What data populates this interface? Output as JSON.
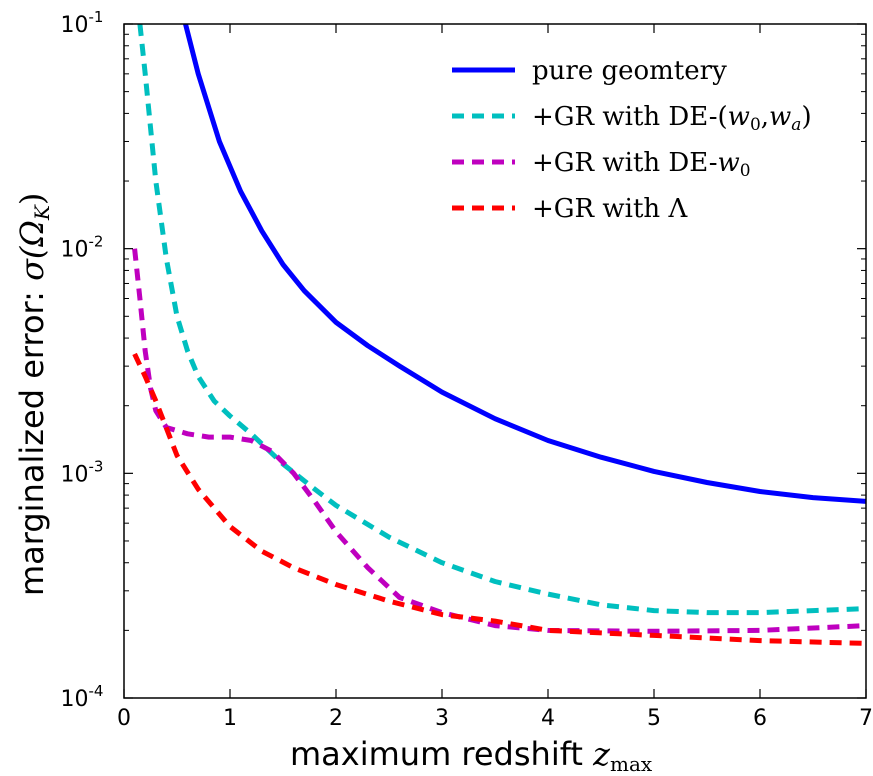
{
  "chart_data": {
    "type": "line",
    "title": "",
    "xlabel": "maximum redshift",
    "xlabel_symbol": "z",
    "xlabel_subscript": "max",
    "ylabel": "marginalized error:",
    "ylabel_symbol": "σ(Ω",
    "ylabel_subscript": "K",
    "ylabel_close": ")",
    "xlim": [
      0,
      7
    ],
    "ylim": [
      0.0001,
      0.1
    ],
    "yscale": "log",
    "grid": false,
    "legend_position": "top-right",
    "x_ticks": [
      {
        "value": 0,
        "label": "0"
      },
      {
        "value": 1,
        "label": "1"
      },
      {
        "value": 2,
        "label": "2"
      },
      {
        "value": 3,
        "label": "3"
      },
      {
        "value": 4,
        "label": "4"
      },
      {
        "value": 5,
        "label": "5"
      },
      {
        "value": 6,
        "label": "6"
      },
      {
        "value": 7,
        "label": "7"
      }
    ],
    "y_ticks": [
      {
        "value": 0.0001,
        "base": "10",
        "exp": "-4"
      },
      {
        "value": 0.001,
        "base": "10",
        "exp": "-3"
      },
      {
        "value": 0.01,
        "base": "10",
        "exp": "-2"
      },
      {
        "value": 0.1,
        "base": "10",
        "exp": "-1"
      }
    ],
    "series": [
      {
        "name": "pure geomtery",
        "color": "#0000ff",
        "dash": "solid",
        "x": [
          0.58,
          0.7,
          0.9,
          1.1,
          1.3,
          1.5,
          1.7,
          2.0,
          2.3,
          2.6,
          3.0,
          3.5,
          4.0,
          4.5,
          5.0,
          5.5,
          6.0,
          6.5,
          7.0
        ],
        "y": [
          0.1,
          0.06,
          0.03,
          0.018,
          0.012,
          0.0085,
          0.0065,
          0.0047,
          0.0037,
          0.003,
          0.0023,
          0.00175,
          0.0014,
          0.00118,
          0.00102,
          0.00091,
          0.00083,
          0.00078,
          0.00075
        ]
      },
      {
        "name": "+GR with DE-(w0,wa)",
        "legend_text": "+GR with DE-(",
        "legend_w": "w",
        "legend_sub0": "0",
        "legend_comma": ",",
        "legend_sub_a": "a",
        "legend_close": ")",
        "color": "#00bfbf",
        "dash": "dashed",
        "x": [
          0.15,
          0.2,
          0.3,
          0.4,
          0.5,
          0.6,
          0.7,
          0.85,
          1.0,
          1.2,
          1.5,
          1.8,
          2.0,
          2.5,
          3.0,
          3.5,
          4.0,
          4.5,
          5.0,
          5.5,
          6.0,
          6.5,
          7.0
        ],
        "y": [
          0.1,
          0.06,
          0.02,
          0.009,
          0.005,
          0.0035,
          0.0027,
          0.0021,
          0.0018,
          0.0015,
          0.0011,
          0.00085,
          0.00072,
          0.00052,
          0.0004,
          0.00033,
          0.00029,
          0.00026,
          0.000245,
          0.00024,
          0.00024,
          0.000245,
          0.00025
        ]
      },
      {
        "name": "+GR with DE-w0",
        "legend_text": "+GR with DE-",
        "legend_w": "w",
        "legend_sub0": "0",
        "color": "#bf00bf",
        "dash": "dashed",
        "x": [
          0.1,
          0.15,
          0.2,
          0.25,
          0.3,
          0.4,
          0.6,
          0.8,
          1.0,
          1.2,
          1.4,
          1.6,
          1.8,
          2.0,
          2.3,
          2.6,
          3.0,
          3.5,
          4.0,
          5.0,
          6.0,
          7.0
        ],
        "y": [
          0.01,
          0.006,
          0.0035,
          0.0024,
          0.0019,
          0.0016,
          0.0015,
          0.00145,
          0.00145,
          0.0014,
          0.00125,
          0.001,
          0.00075,
          0.00055,
          0.00038,
          0.00028,
          0.00024,
          0.00021,
          0.0002,
          0.000198,
          0.0002,
          0.00021
        ]
      },
      {
        "name": "+GR with Λ",
        "legend_text": "+GR with ",
        "legend_symbol": "Λ",
        "color": "#ff0000",
        "dash": "dashed",
        "x": [
          0.1,
          0.2,
          0.3,
          0.5,
          0.7,
          1.0,
          1.3,
          1.6,
          2.0,
          2.5,
          3.0,
          3.5,
          4.0,
          5.0,
          6.0,
          7.0
        ],
        "y": [
          0.0034,
          0.0027,
          0.0021,
          0.0012,
          0.00085,
          0.00058,
          0.00045,
          0.00038,
          0.00032,
          0.00027,
          0.000235,
          0.00022,
          0.0002,
          0.00019,
          0.00018,
          0.000175
        ]
      }
    ]
  }
}
